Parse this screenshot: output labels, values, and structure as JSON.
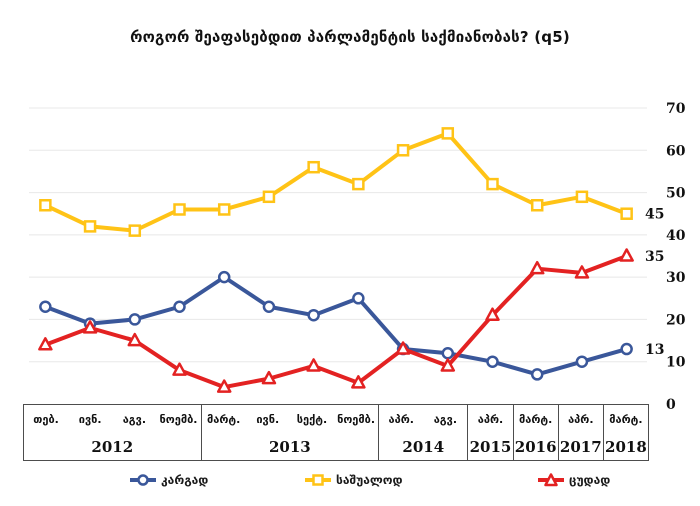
{
  "title": "როგორ შეაფასებდით პარლამენტის საქმიანობას? (q5)",
  "colors": {
    "grid": "#e8e8e8",
    "axis_border": "#4d4d4d",
    "text": "#111111",
    "good": "#3a579a",
    "average": "#ffc316",
    "bad": "#e32222"
  },
  "chart_data": {
    "type": "line",
    "title": "როგორ შეაფასებდით პარლამენტის საქმიანობას? (q5)",
    "grid": "horizontal",
    "legend_position": "bottom",
    "y_axis": {
      "min": 0,
      "max": 70,
      "ticks": [
        0,
        10,
        20,
        30,
        40,
        50,
        60,
        70
      ],
      "side": "right"
    },
    "x_axis": {
      "groups": [
        {
          "year": "2012",
          "months": [
            "თებ.",
            "ივნ.",
            "აგვ.",
            "ნოემბ."
          ]
        },
        {
          "year": "2013",
          "months": [
            "მარტ.",
            "ივნ.",
            "სექტ.",
            "ნოემბ."
          ]
        },
        {
          "year": "2014",
          "months": [
            "აპრ.",
            "აგვ."
          ]
        },
        {
          "year": "2015",
          "months": [
            "აპრ."
          ]
        },
        {
          "year": "2016",
          "months": [
            "მარტ."
          ]
        },
        {
          "year": "2017",
          "months": [
            "აპრ."
          ]
        },
        {
          "year": "2018",
          "months": [
            "მარტ."
          ]
        }
      ]
    },
    "series": [
      {
        "id": "good",
        "name": "კარგად",
        "marker": "circle",
        "color": "#3a579a",
        "values": [
          23,
          19,
          20,
          23,
          30,
          23,
          21,
          25,
          13,
          12,
          10,
          7,
          10,
          13
        ],
        "end_label": "13"
      },
      {
        "id": "average",
        "name": "საშუალოდ",
        "marker": "square",
        "color": "#ffc316",
        "values": [
          47,
          42,
          41,
          46,
          46,
          49,
          56,
          52,
          60,
          64,
          52,
          47,
          49,
          45
        ],
        "end_label": "45"
      },
      {
        "id": "bad",
        "name": "ცუდად",
        "marker": "triangle",
        "color": "#e32222",
        "values": [
          14,
          18,
          15,
          8,
          4,
          6,
          9,
          5,
          13,
          9,
          21,
          32,
          31,
          35
        ],
        "end_label": "35"
      }
    ]
  }
}
